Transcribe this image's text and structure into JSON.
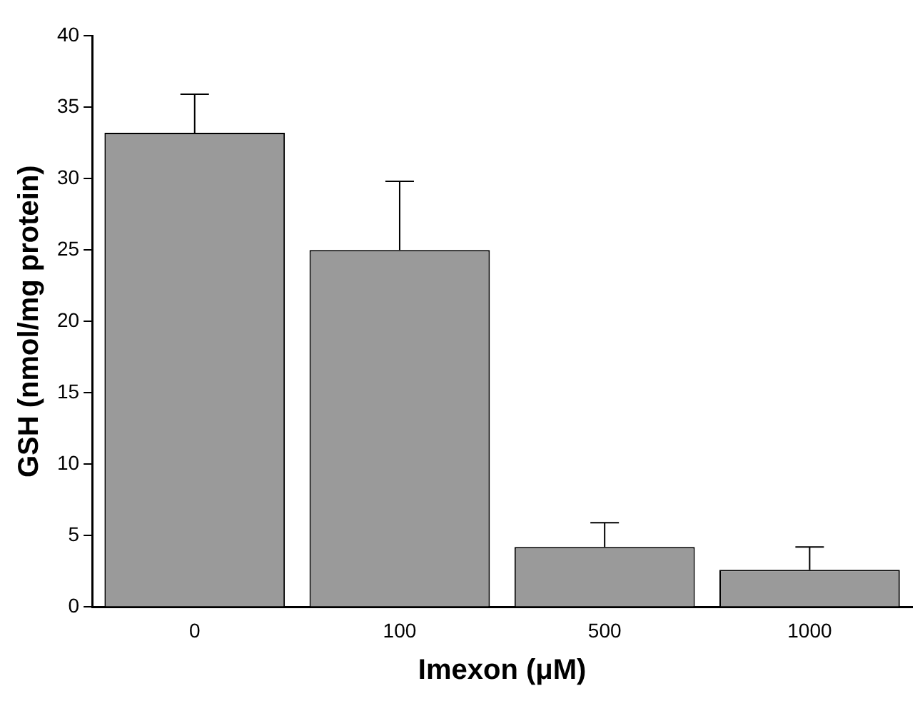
{
  "chart_data": {
    "type": "bar",
    "xlabel": "Imexon (μM)",
    "ylabel": "GSH (nmol/mg protein)",
    "categories": [
      "0",
      "100",
      "500",
      "1000"
    ],
    "values": [
      33.2,
      25.0,
      4.2,
      2.6
    ],
    "errors": [
      [
        33.2,
        35.9
      ],
      [
        25.0,
        29.8
      ],
      [
        4.2,
        5.9
      ],
      [
        2.6,
        4.2
      ]
    ],
    "color": "#9a9a9a",
    "ylim": [
      0,
      40
    ],
    "yticks": [
      0,
      5,
      10,
      15,
      20,
      25,
      30,
      35,
      40
    ],
    "grid": false,
    "legend": false
  }
}
